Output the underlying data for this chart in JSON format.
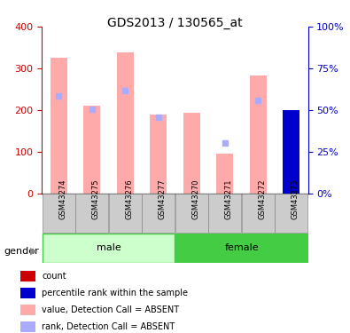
{
  "title": "GDS2013 / 130565_at",
  "samples": [
    "GSM43274",
    "GSM43275",
    "GSM43276",
    "GSM43277",
    "GSM43270",
    "GSM43271",
    "GSM43272",
    "GSM43273"
  ],
  "groups": [
    {
      "label": "male",
      "indices": [
        0,
        1,
        2,
        3
      ],
      "color": "#aaffaa"
    },
    {
      "label": "female",
      "indices": [
        4,
        5,
        6,
        7
      ],
      "color": "#44cc44"
    }
  ],
  "bar_values": [
    325,
    210,
    338,
    188,
    194,
    95,
    282,
    197
  ],
  "bar_colors": [
    "#ffaaaa",
    "#ffaaaa",
    "#ffaaaa",
    "#ffaaaa",
    "#ffaaaa",
    "#ffaaaa",
    "#ffaaaa",
    "#cc0000"
  ],
  "rank_dots": [
    233,
    201,
    246,
    183,
    null,
    121,
    222,
    null
  ],
  "rank_dot_colors": [
    "#aaaaff",
    "#aaaaff",
    "#aaaaff",
    "#aaaaff",
    null,
    "#aaaaff",
    "#aaaaff",
    null
  ],
  "blue_bar_value": 197,
  "blue_bar_index": 7,
  "red_bar_index": 7,
  "ylim_left": [
    0,
    400
  ],
  "ylim_right": [
    0,
    100
  ],
  "yticks_left": [
    0,
    100,
    200,
    300,
    400
  ],
  "yticks_right": [
    0,
    25,
    50,
    75,
    100
  ],
  "ytick_labels_right": [
    "0%",
    "25%",
    "50%",
    "75%",
    "100%"
  ],
  "left_axis_color": "#cc0000",
  "right_axis_color": "#0000cc",
  "grid_color": "#000000",
  "bg_color": "#ffffff",
  "sample_bg_color": "#cccccc",
  "male_color_light": "#ccffcc",
  "male_color_dark": "#44cc44",
  "female_color": "#44cc44",
  "legend_items": [
    {
      "color": "#cc0000",
      "label": "count"
    },
    {
      "color": "#0000cc",
      "label": "percentile rank within the sample"
    },
    {
      "color": "#ffaaaa",
      "label": "value, Detection Call = ABSENT"
    },
    {
      "color": "#aaaaff",
      "label": "rank, Detection Call = ABSENT"
    }
  ]
}
